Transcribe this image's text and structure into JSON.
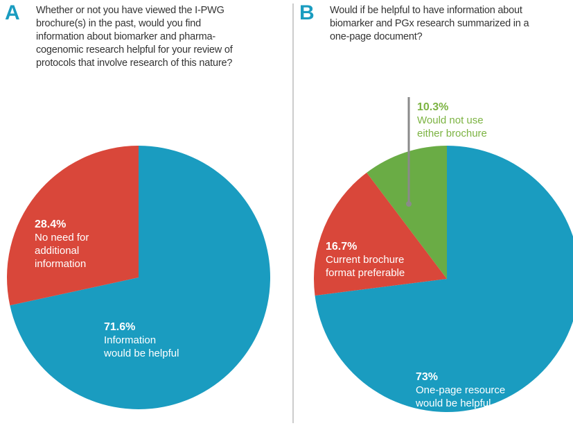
{
  "chart_data": [
    {
      "type": "pie",
      "label": "A",
      "title": "Whether or not you have viewed the I-PWG\nbrochure(s) in the past, would you find\ninformation about biomarker and pharma-\ncogenomic research helpful for your review of\nprotocols that involve research of this nature?",
      "categories": [
        "Information\nwould be helpful",
        "No need for\nadditional\ninformation"
      ],
      "values": [
        71.6,
        28.4
      ],
      "value_labels": [
        "71.6%",
        "28.4%"
      ],
      "colors": [
        "#1a9cc0",
        "#d9473a"
      ]
    },
    {
      "type": "pie",
      "label": "B",
      "title": "Would if be helpful to have information about\nbiomarker and PGx research summarized in a\none-page document?",
      "categories": [
        "One-page resource\nwould be helpful",
        "Current brochure\nformat preferable",
        "Would not use\neither brochure"
      ],
      "values": [
        73,
        16.7,
        10.3
      ],
      "value_labels": [
        "73%",
        "16.7%",
        "10.3%"
      ],
      "colors": [
        "#1a9cc0",
        "#d9473a",
        "#6aac45"
      ]
    }
  ]
}
